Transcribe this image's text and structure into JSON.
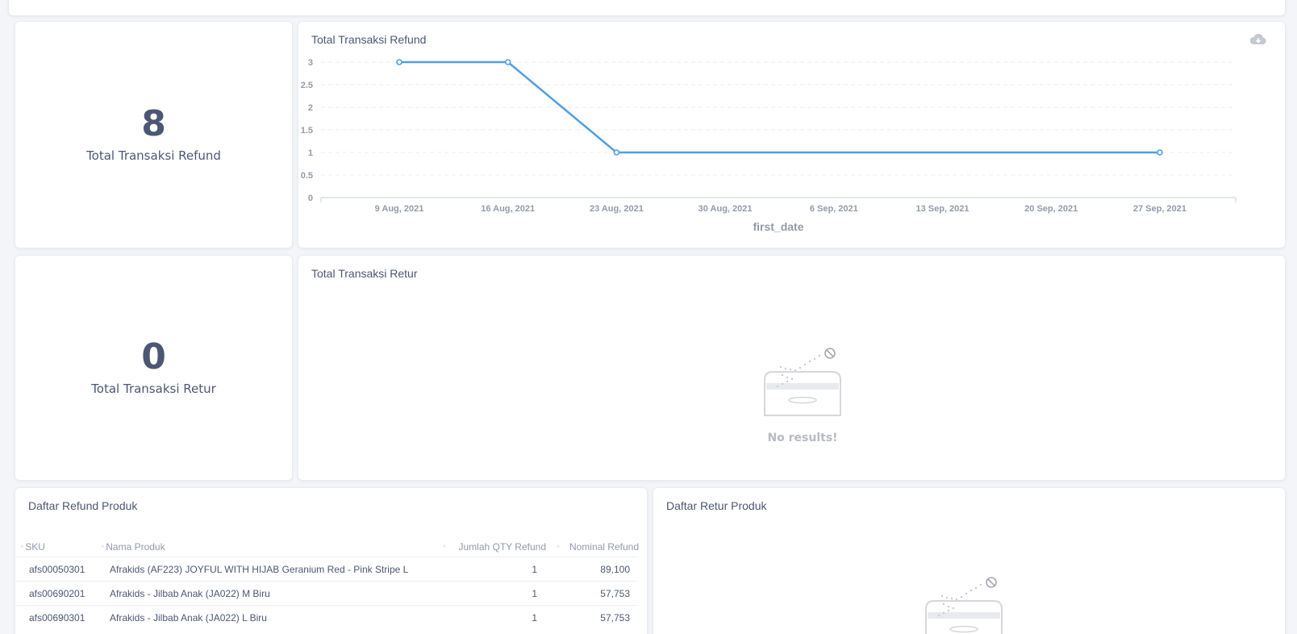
{
  "scalar_refund": {
    "value": "8",
    "label": "Total Transaksi Refund"
  },
  "scalar_retur": {
    "value": "0",
    "label": "Total Transaksi Retur"
  },
  "refund_chart": {
    "title": "Total Transaksi Refund",
    "download_icon": "cloud-download-icon",
    "xlabel": "first_date",
    "x_ticks": [
      "9 Aug, 2021",
      "16 Aug, 2021",
      "23 Aug, 2021",
      "30 Aug, 2021",
      "6 Sep, 2021",
      "13 Sep, 2021",
      "20 Sep, 2021",
      "27 Sep, 2021"
    ],
    "y_ticks": [
      "0",
      "0.5",
      "1",
      "1.5",
      "2",
      "2.5",
      "3"
    ],
    "line_color": "#509ee3"
  },
  "chart_data": {
    "type": "line",
    "title": "Total Transaksi Refund",
    "xlabel": "first_date",
    "ylabel": "",
    "ylim": [
      0,
      3
    ],
    "grid": true,
    "x": [
      "2021-08-09",
      "2021-08-16",
      "2021-08-23",
      "2021-09-27"
    ],
    "series": [
      {
        "values": [
          3,
          3,
          1,
          1
        ]
      }
    ]
  },
  "retur_chart": {
    "title": "Total Transaksi Retur",
    "empty_message": "No results!"
  },
  "refund_table": {
    "title": "Daftar Refund Produk",
    "columns": [
      "SKU",
      "Nama Produk",
      "Jumlah QTY Refund",
      "Nominal Refund"
    ],
    "rows": [
      [
        "afs00050301",
        "Afrakids (AF223) JOYFUL WITH HIJAB Geranium Red - Pink Stripe L",
        "1",
        "89,100"
      ],
      [
        "afs00690201",
        "Afrakids - Jilbab Anak (JA022) M Biru",
        "1",
        "57,753"
      ],
      [
        "afs00690301",
        "Afrakids - Jilbab Anak (JA022) L Biru",
        "1",
        "57,753"
      ]
    ]
  },
  "retur_table": {
    "title": "Daftar Retur Produk"
  }
}
